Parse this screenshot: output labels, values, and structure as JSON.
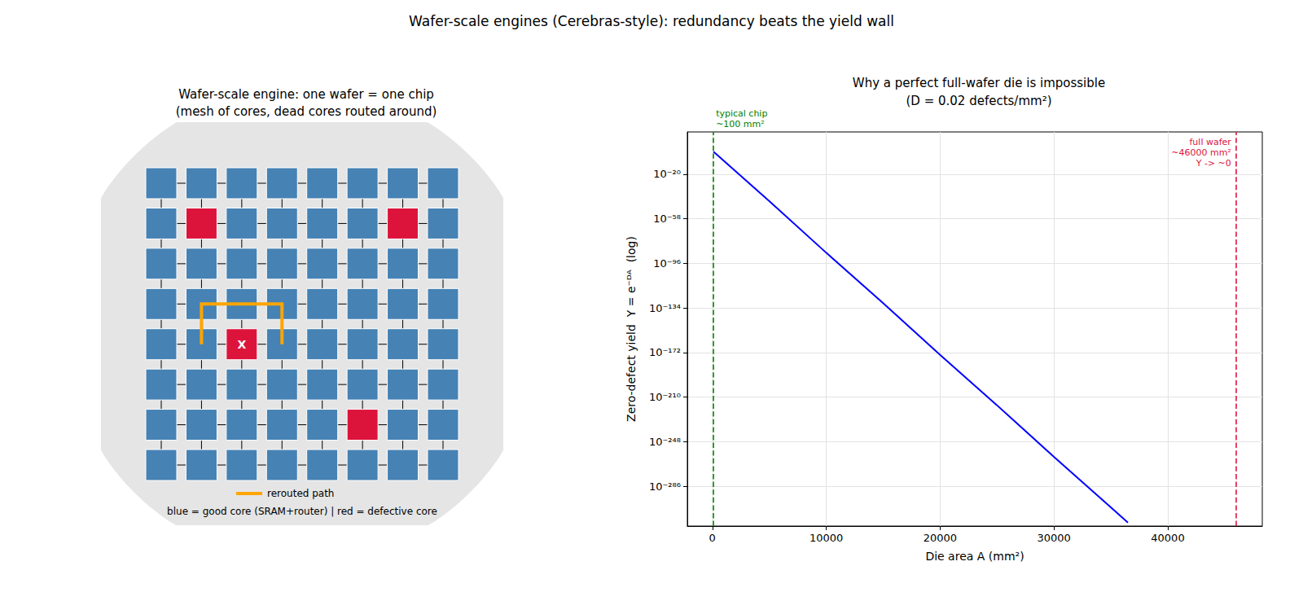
{
  "title": "Wafer-scale engines (Cerebras-style): redundancy beats the yield wall",
  "diagram": {
    "title": "Wafer-scale engine: one wafer = one chip\n(mesh of cores, dead cores routed around)",
    "rows": 8,
    "cols": 8,
    "good_color": "#4682b4",
    "defect_color": "#dc143c",
    "defective_cores": [
      [
        1,
        1
      ],
      [
        1,
        6
      ],
      [
        4,
        2
      ],
      [
        6,
        5
      ]
    ],
    "failed_core": {
      "row": 4,
      "col": 2,
      "label": "X"
    },
    "rerouted_path": {
      "cells": [
        [
          4,
          1
        ],
        [
          3,
          1
        ],
        [
          3,
          3
        ],
        [
          4,
          3
        ]
      ],
      "color": "#ffa500",
      "label": "rerouted path"
    },
    "caption": "blue = good core (SRAM+router) | red = defective core"
  },
  "chart_data": {
    "type": "line",
    "title": "Why a perfect full-wafer die is impossible\n(D = 0.02 defects/mm²)",
    "x_label": "Die area A (mm²)",
    "y_label": "Zero-defect yield  Y = e⁻ᴰᴬ  (log)",
    "x": [
      100,
      5000,
      10000,
      15000,
      20000,
      25000,
      30000,
      35000,
      36500
    ],
    "values": [
      0.135,
      1e-43,
      1e-87,
      1e-130,
      1e-174,
      1e-217,
      1e-261,
      1e-304,
      1e-317
    ],
    "color": "#0000ff",
    "log": "y",
    "grid": true,
    "xlim": [
      -2200,
      48300
    ],
    "ylim": [
      1e-320,
      1e+16
    ],
    "xticks": [
      0,
      10000,
      20000,
      30000,
      40000
    ],
    "yticks": [
      {
        "value": 1e-286,
        "label": "10⁻²⁸⁶"
      },
      {
        "value": 1e-248,
        "label": "10⁻²⁴⁸"
      },
      {
        "value": 1e-210,
        "label": "10⁻²¹⁰"
      },
      {
        "value": 1e-172,
        "label": "10⁻¹⁷²"
      },
      {
        "value": 1e-134,
        "label": "10⁻¹³⁴"
      },
      {
        "value": 1e-96,
        "label": "10⁻⁹⁶"
      },
      {
        "value": 1e-58,
        "label": "10⁻⁵⁸"
      },
      {
        "value": 1e-20,
        "label": "10⁻²⁰"
      }
    ],
    "annotations": [
      {
        "x": 100,
        "text": "typical chip\n~100 mm²",
        "color": "#008000",
        "line_style": "dashed"
      },
      {
        "x": 46000,
        "text": "full wafer\n~46000 mm²\nY -> ~0",
        "color": "#dc143c",
        "line_style": "dashed"
      }
    ]
  }
}
